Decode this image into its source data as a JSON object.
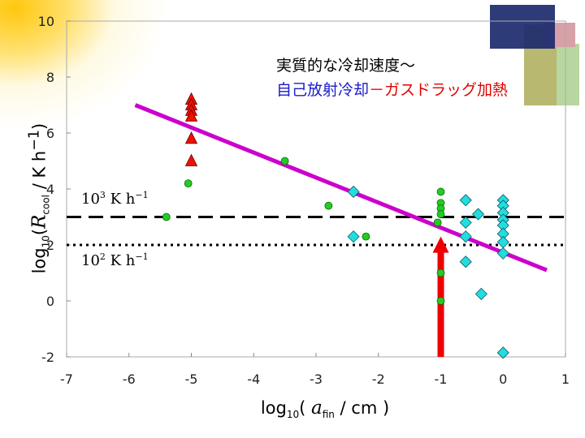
{
  "chart_data": {
    "type": "scatter",
    "xlabel": "log10( a_fin / cm )",
    "ylabel": "log10(R_cool / K h^-1)",
    "xlim": [
      -7,
      1
    ],
    "ylim": [
      -2,
      10
    ],
    "xticks": [
      "-7",
      "-6",
      "-5",
      "-4",
      "-3",
      "-2",
      "-1",
      "0",
      "1"
    ],
    "yticks": [
      "-2",
      "0",
      "2",
      "4",
      "6",
      "8",
      "10"
    ],
    "series": [
      {
        "name": "green-circles",
        "color": "#22cc22",
        "marker": "circle",
        "points": [
          [
            -5.4,
            3.0
          ],
          [
            -5.05,
            4.2
          ],
          [
            -3.5,
            5.0
          ],
          [
            -2.8,
            3.4
          ],
          [
            -2.2,
            2.3
          ],
          [
            -1.05,
            2.8
          ],
          [
            -1.0,
            3.9
          ],
          [
            -1.0,
            3.5
          ],
          [
            -1.0,
            3.3
          ],
          [
            -1.0,
            3.1
          ],
          [
            -1.0,
            1.0
          ],
          [
            -1.0,
            0.0
          ]
        ]
      },
      {
        "name": "red-triangles",
        "color": "#ee1100",
        "marker": "triangle",
        "points": [
          [
            -5.0,
            7.2
          ],
          [
            -5.0,
            7.0
          ],
          [
            -5.0,
            6.8
          ],
          [
            -5.0,
            6.6
          ],
          [
            -5.0,
            5.8
          ],
          [
            -5.0,
            5.0
          ]
        ]
      },
      {
        "name": "cyan-diamonds",
        "color": "#22dddd",
        "marker": "diamond",
        "points": [
          [
            -2.4,
            3.9
          ],
          [
            -2.4,
            2.3
          ],
          [
            -0.6,
            3.6
          ],
          [
            -0.6,
            2.8
          ],
          [
            -0.6,
            2.3
          ],
          [
            -0.6,
            1.4
          ],
          [
            -0.4,
            3.1
          ],
          [
            -0.35,
            0.25
          ],
          [
            0.0,
            3.6
          ],
          [
            0.0,
            3.4
          ],
          [
            0.0,
            3.15
          ],
          [
            0.0,
            2.9
          ],
          [
            0.0,
            2.7
          ],
          [
            0.0,
            2.4
          ],
          [
            0.0,
            2.1
          ],
          [
            0.0,
            1.7
          ],
          [
            0.0,
            -1.85
          ]
        ]
      }
    ],
    "fit_line": {
      "color": "#cc00cc",
      "from": [
        -5.9,
        7.0
      ],
      "to": [
        0.7,
        1.1
      ]
    },
    "reference_lines": [
      {
        "y": 3.0,
        "style": "dashed",
        "label_prefix": "10",
        "label_sup": "3",
        "label_unit": " K h",
        "label_unit_sup": "−1"
      },
      {
        "y": 2.0,
        "style": "dotted",
        "label_prefix": "10",
        "label_sup": "2",
        "label_unit": " K h",
        "label_unit_sup": "−1"
      }
    ],
    "arrow": {
      "color": "#ee0000",
      "x": -1.0,
      "y_from": -2.0,
      "y_to": 2.3
    }
  },
  "labels": {
    "ylabel_prefix": "log",
    "ylabel_sub": "10",
    "ylabel_open": "(",
    "ylabel_var": "R",
    "ylabel_var_sub": "cool",
    "ylabel_unit": " / K h",
    "ylabel_unit_sup": "−1",
    "ylabel_close": ")",
    "xlabel_prefix": "log",
    "xlabel_sub": "10",
    "xlabel_open": "( ",
    "xlabel_var": "a",
    "xlabel_var_sub": "fin",
    "xlabel_unit": " / cm )"
  },
  "annotations": {
    "line1": "実質的な冷却速度～",
    "line2_blue": "自己放射冷却",
    "line2_sep": "－",
    "line2_red": "ガスドラッグ加熱"
  },
  "colors": {
    "deco_navy": "#1c2a6e",
    "deco_olive": "#b8b870",
    "deco_pink": "#d8a0a8",
    "deco_green": "#b7d6a0"
  }
}
